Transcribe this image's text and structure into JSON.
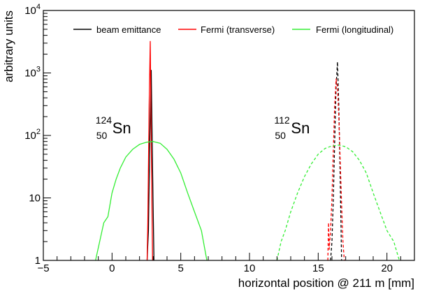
{
  "chart_data": {
    "type": "line",
    "xlabel": "horizontal position @ 211 m [mm]",
    "ylabel": "arbitrary units",
    "xlim": [
      -5,
      22
    ],
    "ylim": [
      1,
      10000
    ],
    "yscale": "log",
    "grid": false,
    "legend_position": "top",
    "x_ticks": [
      {
        "value": -5,
        "label": "−5"
      },
      {
        "value": 0,
        "label": "0"
      },
      {
        "value": 5,
        "label": "5"
      },
      {
        "value": 10,
        "label": "10"
      },
      {
        "value": 15,
        "label": "15"
      },
      {
        "value": 20,
        "label": "20"
      }
    ],
    "y_ticks": [
      {
        "value": 1,
        "base": "1",
        "exp": ""
      },
      {
        "value": 10,
        "base": "10",
        "exp": ""
      },
      {
        "value": 100,
        "base": "10",
        "exp": "2"
      },
      {
        "value": 1000,
        "base": "10",
        "exp": "3"
      },
      {
        "value": 10000,
        "base": "10",
        "exp": "4"
      }
    ],
    "legend": [
      {
        "label": "beam emittance",
        "color": "#000000"
      },
      {
        "label": "Fermi (transverse)",
        "color": "#ff0000"
      },
      {
        "label": "Fermi (longitudinal)",
        "color": "#33ee33"
      }
    ],
    "annotations": [
      {
        "mass": "124",
        "charge": "50",
        "element": "Sn",
        "x": -1.2,
        "y": 130
      },
      {
        "mass": "112",
        "charge": "50",
        "element": "Sn",
        "x": 11.8,
        "y": 130
      }
    ],
    "series": [
      {
        "legend_index": 0,
        "color": "#000000",
        "dash": "solid",
        "x": [
          2.55,
          2.65,
          2.75,
          2.85,
          2.95,
          3.05
        ],
        "y": [
          1,
          3,
          100,
          1100,
          30,
          1
        ]
      },
      {
        "legend_index": 1,
        "color": "#ff0000",
        "dash": "solid",
        "x": [
          2.55,
          2.6,
          2.7,
          2.78,
          2.85,
          2.95
        ],
        "y": [
          1,
          4,
          300,
          3200,
          80,
          1
        ]
      },
      {
        "legend_index": 2,
        "color": "#33ee33",
        "dash": "solid",
        "x": [
          -1.2,
          -0.9,
          -0.6,
          -0.3,
          0.0,
          0.3,
          0.6,
          1.0,
          1.5,
          2.0,
          2.5,
          3.0,
          3.5,
          4.0,
          4.5,
          5.0,
          5.5,
          6.0,
          6.5,
          6.9
        ],
        "y": [
          1,
          2,
          4,
          5,
          12,
          20,
          30,
          45,
          60,
          72,
          78,
          80,
          75,
          60,
          42,
          25,
          12,
          6,
          3,
          1
        ]
      },
      {
        "legend_index": 0,
        "color": "#000000",
        "dash": "dashed",
        "x": [
          15.9,
          16.0,
          16.1,
          16.2,
          16.3,
          16.4,
          16.5,
          16.6,
          16.7
        ],
        "y": [
          1,
          2,
          10,
          80,
          600,
          1500,
          300,
          20,
          1
        ]
      },
      {
        "legend_index": 1,
        "color": "#ff0000",
        "dash": "dashed",
        "x": [
          15.7,
          15.75,
          15.8,
          15.9,
          16.0,
          16.1,
          16.2,
          16.3,
          16.4,
          16.5,
          16.6,
          16.7,
          16.8,
          16.9
        ],
        "y": [
          1,
          4,
          1.5,
          3,
          10,
          60,
          300,
          800,
          600,
          200,
          40,
          8,
          2,
          1
        ]
      },
      {
        "legend_index": 2,
        "color": "#33ee33",
        "dash": "dashed",
        "x": [
          12.0,
          12.3,
          12.6,
          13.0,
          13.5,
          14.0,
          14.5,
          15.0,
          15.5,
          16.0,
          16.5,
          17.0,
          17.5,
          18.0,
          18.5,
          19.0,
          19.5,
          20.0,
          20.5,
          20.9
        ],
        "y": [
          1,
          2,
          3,
          6,
          12,
          22,
          35,
          50,
          62,
          68,
          70,
          66,
          55,
          40,
          25,
          12,
          6,
          3,
          2,
          1
        ]
      }
    ]
  }
}
